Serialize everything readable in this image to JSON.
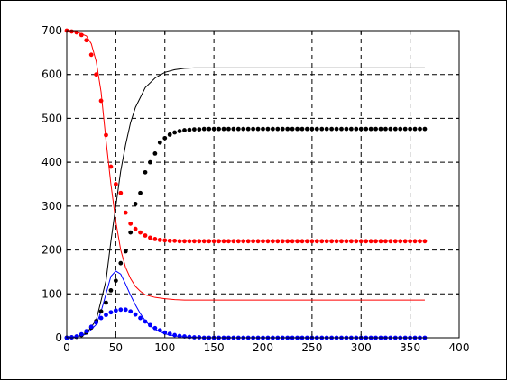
{
  "chart_data": {
    "type": "line",
    "title": "",
    "xlabel": "",
    "ylabel": "",
    "xlim": [
      0,
      400
    ],
    "ylim": [
      0,
      700
    ],
    "x_ticks": [
      0,
      50,
      100,
      150,
      200,
      250,
      300,
      350,
      400
    ],
    "y_ticks": [
      0,
      100,
      200,
      300,
      400,
      500,
      600,
      700
    ],
    "grid": true,
    "legend": "none",
    "series": [
      {
        "style": "line",
        "color": "#000000",
        "points": [
          [
            0,
            0
          ],
          [
            10,
            2
          ],
          [
            20,
            10
          ],
          [
            30,
            40
          ],
          [
            40,
            130
          ],
          [
            45,
            220
          ],
          [
            50,
            300
          ],
          [
            55,
            380
          ],
          [
            60,
            440
          ],
          [
            65,
            490
          ],
          [
            70,
            525
          ],
          [
            80,
            570
          ],
          [
            90,
            592
          ],
          [
            100,
            605
          ],
          [
            110,
            611
          ],
          [
            120,
            614
          ],
          [
            130,
            615
          ],
          [
            365,
            615
          ]
        ]
      },
      {
        "style": "line",
        "color": "#ff0000",
        "points": [
          [
            0,
            700
          ],
          [
            10,
            697
          ],
          [
            20,
            688
          ],
          [
            25,
            670
          ],
          [
            30,
            630
          ],
          [
            35,
            560
          ],
          [
            40,
            450
          ],
          [
            45,
            350
          ],
          [
            50,
            265
          ],
          [
            55,
            200
          ],
          [
            60,
            160
          ],
          [
            65,
            135
          ],
          [
            70,
            117
          ],
          [
            75,
            106
          ],
          [
            80,
            98
          ],
          [
            90,
            92
          ],
          [
            100,
            89
          ],
          [
            110,
            87
          ],
          [
            120,
            86
          ],
          [
            365,
            86
          ]
        ]
      },
      {
        "style": "line",
        "color": "#0000ff",
        "points": [
          [
            0,
            0
          ],
          [
            10,
            2
          ],
          [
            20,
            8
          ],
          [
            30,
            30
          ],
          [
            35,
            60
          ],
          [
            40,
            100
          ],
          [
            45,
            140
          ],
          [
            50,
            152
          ],
          [
            55,
            145
          ],
          [
            60,
            122
          ],
          [
            65,
            97
          ],
          [
            70,
            75
          ],
          [
            75,
            55
          ],
          [
            80,
            39
          ],
          [
            85,
            27
          ],
          [
            90,
            19
          ],
          [
            100,
            9
          ],
          [
            110,
            4
          ],
          [
            120,
            2
          ],
          [
            130,
            1
          ],
          [
            140,
            0
          ],
          [
            365,
            0
          ]
        ]
      },
      {
        "style": "markers",
        "color": "#000000",
        "points": [
          [
            0,
            0
          ],
          [
            5,
            1
          ],
          [
            10,
            2
          ],
          [
            15,
            6
          ],
          [
            20,
            12
          ],
          [
            25,
            23
          ],
          [
            30,
            38
          ],
          [
            35,
            60
          ],
          [
            40,
            80
          ],
          [
            45,
            108
          ],
          [
            50,
            130
          ],
          [
            55,
            170
          ],
          [
            60,
            197
          ],
          [
            65,
            240
          ],
          [
            70,
            305
          ],
          [
            75,
            330
          ],
          [
            80,
            377
          ],
          [
            85,
            400
          ],
          [
            90,
            420
          ],
          [
            95,
            445
          ],
          [
            100,
            455
          ],
          [
            105,
            463
          ],
          [
            110,
            468
          ],
          [
            115,
            471
          ],
          [
            120,
            473
          ],
          [
            125,
            474
          ],
          [
            130,
            475
          ],
          [
            135,
            475
          ],
          [
            140,
            476
          ],
          [
            145,
            476
          ],
          [
            150,
            476
          ],
          [
            155,
            476
          ],
          [
            160,
            476
          ],
          [
            165,
            476
          ],
          [
            170,
            476
          ],
          [
            175,
            476
          ],
          [
            180,
            476
          ],
          [
            185,
            476
          ],
          [
            190,
            476
          ],
          [
            195,
            476
          ],
          [
            200,
            476
          ],
          [
            205,
            476
          ],
          [
            210,
            476
          ],
          [
            215,
            476
          ],
          [
            220,
            476
          ],
          [
            225,
            476
          ],
          [
            230,
            476
          ],
          [
            235,
            476
          ],
          [
            240,
            476
          ],
          [
            245,
            476
          ],
          [
            250,
            476
          ],
          [
            255,
            476
          ],
          [
            260,
            476
          ],
          [
            265,
            476
          ],
          [
            270,
            476
          ],
          [
            275,
            476
          ],
          [
            280,
            476
          ],
          [
            285,
            476
          ],
          [
            290,
            476
          ],
          [
            295,
            476
          ],
          [
            300,
            476
          ],
          [
            305,
            476
          ],
          [
            310,
            476
          ],
          [
            315,
            476
          ],
          [
            320,
            476
          ],
          [
            325,
            476
          ],
          [
            330,
            476
          ],
          [
            335,
            476
          ],
          [
            340,
            476
          ],
          [
            345,
            476
          ],
          [
            350,
            476
          ],
          [
            355,
            476
          ],
          [
            360,
            476
          ],
          [
            365,
            476
          ]
        ]
      },
      {
        "style": "markers",
        "color": "#ff0000",
        "points": [
          [
            0,
            700
          ],
          [
            5,
            698
          ],
          [
            10,
            696
          ],
          [
            15,
            690
          ],
          [
            20,
            678
          ],
          [
            25,
            645
          ],
          [
            30,
            600
          ],
          [
            35,
            540
          ],
          [
            40,
            462
          ],
          [
            45,
            390
          ],
          [
            50,
            350
          ],
          [
            55,
            330
          ],
          [
            60,
            285
          ],
          [
            65,
            260
          ],
          [
            70,
            248
          ],
          [
            75,
            240
          ],
          [
            80,
            233
          ],
          [
            85,
            228
          ],
          [
            90,
            225
          ],
          [
            95,
            223
          ],
          [
            100,
            222
          ],
          [
            105,
            221
          ],
          [
            110,
            221
          ],
          [
            115,
            220
          ],
          [
            120,
            220
          ],
          [
            125,
            220
          ],
          [
            130,
            220
          ],
          [
            135,
            220
          ],
          [
            140,
            220
          ],
          [
            145,
            220
          ],
          [
            150,
            220
          ],
          [
            155,
            220
          ],
          [
            160,
            220
          ],
          [
            165,
            220
          ],
          [
            170,
            220
          ],
          [
            175,
            220
          ],
          [
            180,
            220
          ],
          [
            185,
            220
          ],
          [
            190,
            220
          ],
          [
            195,
            220
          ],
          [
            200,
            220
          ],
          [
            205,
            220
          ],
          [
            210,
            220
          ],
          [
            215,
            220
          ],
          [
            220,
            220
          ],
          [
            225,
            220
          ],
          [
            230,
            220
          ],
          [
            235,
            220
          ],
          [
            240,
            220
          ],
          [
            245,
            220
          ],
          [
            250,
            220
          ],
          [
            255,
            220
          ],
          [
            260,
            220
          ],
          [
            265,
            220
          ],
          [
            270,
            220
          ],
          [
            275,
            220
          ],
          [
            280,
            220
          ],
          [
            285,
            220
          ],
          [
            290,
            220
          ],
          [
            295,
            220
          ],
          [
            300,
            220
          ],
          [
            305,
            220
          ],
          [
            310,
            220
          ],
          [
            315,
            220
          ],
          [
            320,
            220
          ],
          [
            325,
            220
          ],
          [
            330,
            220
          ],
          [
            335,
            220
          ],
          [
            340,
            220
          ],
          [
            345,
            220
          ],
          [
            350,
            220
          ],
          [
            355,
            220
          ],
          [
            360,
            220
          ],
          [
            365,
            220
          ]
        ]
      },
      {
        "style": "markers",
        "color": "#0000ff",
        "points": [
          [
            0,
            0
          ],
          [
            5,
            1
          ],
          [
            10,
            3
          ],
          [
            15,
            8
          ],
          [
            20,
            15
          ],
          [
            25,
            25
          ],
          [
            30,
            35
          ],
          [
            35,
            45
          ],
          [
            40,
            52
          ],
          [
            45,
            58
          ],
          [
            50,
            62
          ],
          [
            55,
            64
          ],
          [
            60,
            64
          ],
          [
            65,
            60
          ],
          [
            70,
            53
          ],
          [
            75,
            45
          ],
          [
            80,
            37
          ],
          [
            85,
            29
          ],
          [
            90,
            22
          ],
          [
            95,
            17
          ],
          [
            100,
            12
          ],
          [
            105,
            9
          ],
          [
            110,
            6
          ],
          [
            115,
            4
          ],
          [
            120,
            3
          ],
          [
            125,
            2
          ],
          [
            130,
            1
          ],
          [
            135,
            1
          ],
          [
            140,
            0
          ],
          [
            145,
            0
          ],
          [
            150,
            0
          ],
          [
            155,
            0
          ],
          [
            160,
            0
          ],
          [
            165,
            0
          ],
          [
            170,
            0
          ],
          [
            175,
            0
          ],
          [
            180,
            0
          ],
          [
            185,
            0
          ],
          [
            190,
            0
          ],
          [
            195,
            0
          ],
          [
            200,
            0
          ],
          [
            205,
            0
          ],
          [
            210,
            0
          ],
          [
            215,
            0
          ],
          [
            220,
            0
          ],
          [
            225,
            0
          ],
          [
            230,
            0
          ],
          [
            235,
            0
          ],
          [
            240,
            0
          ],
          [
            245,
            0
          ],
          [
            250,
            0
          ],
          [
            255,
            0
          ],
          [
            260,
            0
          ],
          [
            265,
            0
          ],
          [
            270,
            0
          ],
          [
            275,
            0
          ],
          [
            280,
            0
          ],
          [
            285,
            0
          ],
          [
            290,
            0
          ],
          [
            295,
            0
          ],
          [
            300,
            0
          ],
          [
            305,
            0
          ],
          [
            310,
            0
          ],
          [
            315,
            0
          ],
          [
            320,
            0
          ],
          [
            325,
            0
          ],
          [
            330,
            0
          ],
          [
            335,
            0
          ],
          [
            340,
            0
          ],
          [
            345,
            0
          ],
          [
            350,
            0
          ],
          [
            355,
            0
          ],
          [
            360,
            0
          ],
          [
            365,
            0
          ]
        ]
      }
    ]
  }
}
